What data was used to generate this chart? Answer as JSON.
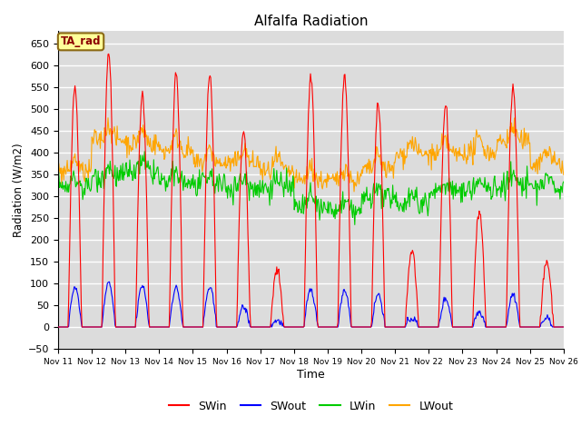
{
  "title": "Alfalfa Radiation",
  "xlabel": "Time",
  "ylabel": "Radiation (W/m2)",
  "ylim": [
    -50,
    680
  ],
  "annotation_text": "TA_rad",
  "annotation_color": "#8B0000",
  "annotation_bg": "#FFFF99",
  "annotation_edge": "#8B6914",
  "colors": {
    "SWin": "#FF0000",
    "SWout": "#0000FF",
    "LWin": "#00CC00",
    "LWout": "#FFA500"
  },
  "plot_bg": "#DCDCDC",
  "grid_color": "white",
  "n_days": 15,
  "start_day": 11,
  "xtick_labels": [
    "Nov 11",
    "Nov 12",
    "Nov 13",
    "Nov 14",
    "Nov 15",
    "Nov 16",
    "Nov 17",
    "Nov 18",
    "Nov 19",
    "Nov 20",
    "Nov 21",
    "Nov 22",
    "Nov 23",
    "Nov 24",
    "Nov 25",
    "Nov 26"
  ],
  "SWin_peaks": [
    550,
    630,
    535,
    580,
    580,
    450,
    130,
    575,
    575,
    510,
    175,
    510,
    265,
    550,
    150
  ],
  "SWout_peaks": [
    90,
    100,
    95,
    90,
    90,
    45,
    15,
    85,
    85,
    75,
    20,
    65,
    35,
    75,
    20
  ],
  "LWout_base": 355,
  "LWout_day_offsets": [
    0,
    75,
    65,
    50,
    20,
    20,
    0,
    -20,
    -20,
    5,
    40,
    40,
    45,
    70,
    20
  ],
  "LWin_base": 315,
  "LWin_day_offsets": [
    5,
    30,
    40,
    15,
    10,
    5,
    5,
    -40,
    -50,
    -20,
    -30,
    -5,
    0,
    10,
    5
  ]
}
